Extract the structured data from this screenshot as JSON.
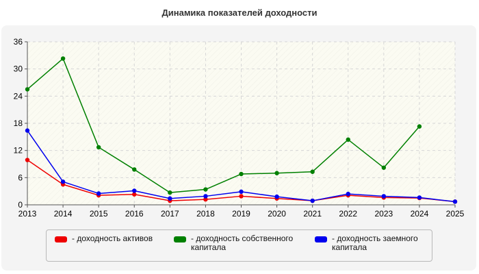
{
  "chart_data": {
    "type": "line",
    "title": "Динамика показателей доходности",
    "xlabel": "",
    "ylabel": "",
    "x": [
      "2013",
      "2014",
      "2015",
      "2016",
      "2017",
      "2018",
      "2019",
      "2020",
      "2021",
      "2022",
      "2023",
      "2024",
      "2025"
    ],
    "ylim": [
      0,
      36
    ],
    "yticks": [
      0,
      6,
      12,
      18,
      24,
      30,
      36
    ],
    "grid": true,
    "legend_position": "bottom",
    "series": [
      {
        "name": "- доходность активов",
        "color": "#ee0000",
        "values": [
          9.9,
          4.5,
          2.1,
          2.3,
          0.9,
          1.2,
          1.9,
          1.4,
          0.9,
          2.1,
          1.6,
          1.5,
          0.7
        ]
      },
      {
        "name": "- доходность собственного капитала",
        "color": "#008000",
        "values": [
          25.5,
          32.3,
          12.7,
          7.8,
          2.7,
          3.4,
          6.8,
          7.0,
          7.3,
          14.4,
          8.2,
          17.3,
          null
        ]
      },
      {
        "name": "- доходность заемного капитала",
        "color": "#0000ee",
        "values": [
          16.4,
          5.1,
          2.5,
          3.1,
          1.4,
          1.9,
          2.9,
          1.8,
          0.9,
          2.4,
          1.9,
          1.6,
          0.7
        ]
      }
    ]
  }
}
